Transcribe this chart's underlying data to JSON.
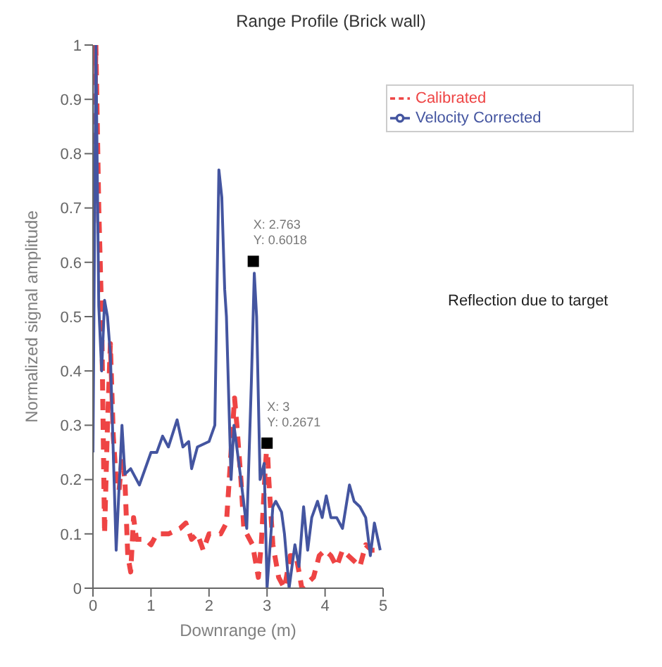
{
  "chart_data": {
    "type": "line",
    "title": "Range Profile (Brick wall)",
    "xlabel": "Downrange (m)",
    "ylabel": "Normalized signal amplitude",
    "xlim": [
      0,
      5
    ],
    "xticks": [
      0,
      1,
      2,
      3,
      4,
      5
    ],
    "ylim": [
      0,
      1
    ],
    "yticks": [
      0,
      0.1,
      0.2,
      0.3,
      0.4,
      0.5,
      0.6,
      0.7,
      0.8,
      0.9,
      1
    ],
    "legend": "top right",
    "grid": false,
    "annotations": [
      {
        "text": "X: 2.763\nY: 0.6018",
        "x": 2.763,
        "y": 0.6018
      },
      {
        "text": "X: 3\nY: 0.2671",
        "x": 3,
        "y": 0.2671
      },
      "Reflection due to target"
    ],
    "series": [
      {
        "name": "Calibrated",
        "color": "#ee4444",
        "line_style": "dashed",
        "x": [
          0,
          0.05,
          0.1,
          0.15,
          0.2,
          0.25,
          0.3,
          0.35,
          0.4,
          0.45,
          0.5,
          0.55,
          0.6,
          0.65,
          0.7,
          0.75,
          0.9,
          1.0,
          1.1,
          1.3,
          1.5,
          1.6,
          1.7,
          1.8,
          1.9,
          2.0,
          2.2,
          2.3,
          2.44,
          2.48,
          2.55,
          2.6,
          2.65,
          2.75,
          2.85,
          2.9,
          2.97,
          3.0,
          3.03,
          3.1,
          3.2,
          3.3,
          3.4,
          3.5,
          3.6,
          3.7,
          3.8,
          3.9,
          4.0,
          4.1,
          4.2,
          4.3,
          4.4,
          4.5,
          4.6,
          4.7,
          4.8,
          4.9
        ],
        "values": [
          0.6,
          1.0,
          0.7,
          0.5,
          0.1,
          0.3,
          0.45,
          0.28,
          0.2,
          0.18,
          0.24,
          0.2,
          0.06,
          0.03,
          0.13,
          0.09,
          0.09,
          0.08,
          0.1,
          0.1,
          0.11,
          0.12,
          0.09,
          0.1,
          0.07,
          0.1,
          0.1,
          0.12,
          0.35,
          0.3,
          0.2,
          0.11,
          0.1,
          0.08,
          0.02,
          0.08,
          0.22,
          0.27,
          0.2,
          0.08,
          0.02,
          0.0,
          0.06,
          0.06,
          0.0,
          0.01,
          0.02,
          0.06,
          0.07,
          0.06,
          0.04,
          0.07,
          0.06,
          0.05,
          0.04,
          0.08,
          0.07,
          0.07
        ]
      },
      {
        "name": "Velocity Corrected",
        "color": "#4455a0",
        "line_style": "solid",
        "x": [
          0,
          0.05,
          0.1,
          0.15,
          0.2,
          0.25,
          0.3,
          0.4,
          0.5,
          0.55,
          0.65,
          0.8,
          1.0,
          1.1,
          1.2,
          1.3,
          1.45,
          1.55,
          1.65,
          1.7,
          1.8,
          2.0,
          2.1,
          2.17,
          2.22,
          2.27,
          2.3,
          2.38,
          2.43,
          2.55,
          2.65,
          2.73,
          2.78,
          2.82,
          2.88,
          2.95,
          3.0,
          3.1,
          3.15,
          3.25,
          3.3,
          3.38,
          3.48,
          3.55,
          3.63,
          3.7,
          3.77,
          3.87,
          3.95,
          4.02,
          4.1,
          4.2,
          4.3,
          4.42,
          4.5,
          4.6,
          4.7,
          4.78,
          4.85,
          4.95
        ],
        "values": [
          0.25,
          1.0,
          0.52,
          0.4,
          0.53,
          0.5,
          0.43,
          0.07,
          0.3,
          0.21,
          0.22,
          0.19,
          0.25,
          0.25,
          0.28,
          0.26,
          0.31,
          0.26,
          0.27,
          0.22,
          0.26,
          0.27,
          0.3,
          0.77,
          0.72,
          0.55,
          0.5,
          0.2,
          0.3,
          0.2,
          0.11,
          0.38,
          0.58,
          0.5,
          0.2,
          0.23,
          0.0,
          0.15,
          0.16,
          0.14,
          0.1,
          0.0,
          0.08,
          0.04,
          0.15,
          0.07,
          0.13,
          0.16,
          0.13,
          0.17,
          0.13,
          0.13,
          0.11,
          0.19,
          0.16,
          0.15,
          0.13,
          0.06,
          0.12,
          0.07
        ]
      }
    ]
  }
}
